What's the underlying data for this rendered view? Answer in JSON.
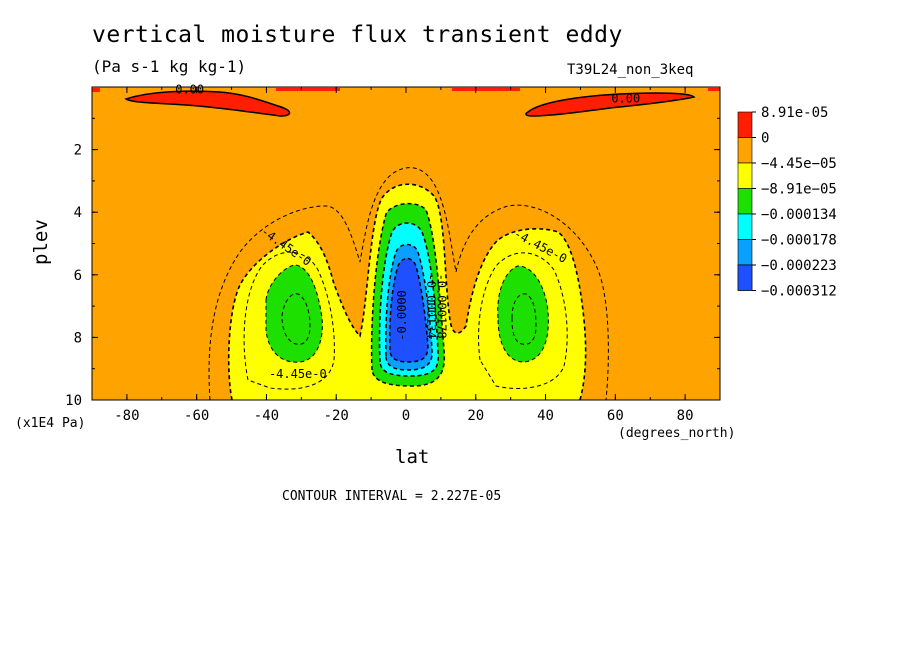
{
  "chart_data": {
    "type": "heatmap",
    "title": "vertical moisture flux transient eddy",
    "units": "(Pa s-1 kg kg-1)",
    "run_label": "T39L24_non_3keq",
    "xlabel": "lat",
    "x_units": "(degrees_north)",
    "ylabel": "plev",
    "y_units": "(x1E4 Pa)",
    "xlim": [
      -90,
      90
    ],
    "ylim": [
      10,
      0
    ],
    "x_ticks": [
      "-80",
      "-60",
      "-40",
      "-20",
      "0",
      "20",
      "40",
      "60",
      "80"
    ],
    "y_ticks": [
      "2",
      "4",
      "6",
      "8",
      "10"
    ],
    "contour_interval_text": "CONTOUR INTERVAL = 2.227E-05",
    "contour_labels": [
      "0.00",
      "0.00",
      "-4.45e-0",
      "-4.45e-0",
      "-4.45e-0",
      "-0.000134",
      "-0.000178",
      "-0.0000"
    ],
    "legend": [
      {
        "label": "8.91e-05",
        "color": "#ff1e00"
      },
      {
        "label": "0",
        "color": "#ffa300"
      },
      {
        "label": "−4.45e−05",
        "color": "#ffff00"
      },
      {
        "label": "−8.91e−05",
        "color": "#1ee000"
      },
      {
        "label": "−0.000134",
        "color": "#00ffff"
      },
      {
        "label": "−0.000178",
        "color": "#0aa0ff"
      },
      {
        "label": "−0.000223",
        "color": "#1e50ff"
      },
      {
        "label": "−0.000312",
        "color": "#ffffff"
      }
    ],
    "features": [
      {
        "name": "equatorial minimum",
        "lat": 0,
        "plev": 7.3,
        "value_range": "< -0.000223"
      },
      {
        "name": "southern subtropical minimum",
        "lat": -32,
        "plev": 7.2,
        "value_range": "-0.000134 to -8.91e-05"
      },
      {
        "name": "northern subtropical minimum",
        "lat": 32,
        "plev": 7.2,
        "value_range": "-0.000134 to -8.91e-05"
      },
      {
        "name": "southern upper maximum",
        "lat": -60,
        "plev": 0.5,
        "value_range": "> 0"
      },
      {
        "name": "northern upper maximum",
        "lat": 60,
        "plev": 0.5,
        "value_range": "> 0"
      }
    ]
  }
}
